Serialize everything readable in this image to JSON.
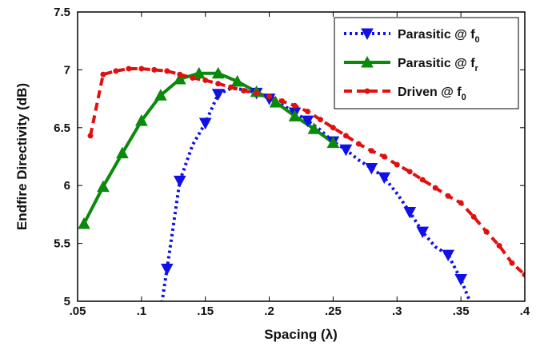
{
  "chart_data": {
    "type": "line",
    "title": "",
    "xlabel": "Spacing (λ)",
    "ylabel": "Endfire Directivity (dB)",
    "xlim": [
      0.05,
      0.4
    ],
    "ylim": [
      5,
      7.5
    ],
    "x_ticks": [
      ".05",
      ".1",
      ".15",
      ".2",
      ".25",
      ".3",
      ".35",
      ".4"
    ],
    "y_ticks": [
      "5",
      "5.5",
      "6",
      "6.5",
      "7",
      "7.5"
    ],
    "grid": false,
    "legend_position": "top-right",
    "series": [
      {
        "name_main": "Parasitic @ f",
        "name_sub": "0",
        "color": "#1010e8",
        "line_style": "dotted",
        "marker": "triangle-down",
        "x": [
          0.112,
          0.12,
          0.13,
          0.14,
          0.15,
          0.16,
          0.17,
          0.18,
          0.19,
          0.2,
          0.21,
          0.22,
          0.23,
          0.24,
          0.25,
          0.26,
          0.27,
          0.28,
          0.29,
          0.3,
          0.31,
          0.32,
          0.33,
          0.34,
          0.35,
          0.357
        ],
        "y": [
          4.7,
          5.28,
          6.04,
          6.35,
          6.54,
          6.79,
          6.84,
          6.83,
          6.8,
          6.75,
          6.7,
          6.63,
          6.56,
          6.48,
          6.38,
          6.31,
          6.22,
          6.15,
          6.07,
          5.93,
          5.77,
          5.6,
          5.47,
          5.4,
          5.19,
          5.0
        ],
        "marked": [
          false,
          true,
          true,
          false,
          true,
          true,
          false,
          false,
          true,
          true,
          false,
          true,
          true,
          false,
          true,
          true,
          false,
          true,
          true,
          false,
          true,
          true,
          false,
          true,
          true,
          false
        ]
      },
      {
        "name_main": "Parasitic @ f",
        "name_sub": "r",
        "color": "#0a8a0a",
        "line_style": "solid",
        "marker": "triangle-up",
        "x": [
          0.055,
          0.07,
          0.085,
          0.1,
          0.115,
          0.13,
          0.145,
          0.16,
          0.175,
          0.19,
          0.205,
          0.22,
          0.235,
          0.25
        ],
        "y": [
          5.67,
          5.99,
          6.28,
          6.56,
          6.78,
          6.92,
          6.97,
          6.97,
          6.9,
          6.81,
          6.72,
          6.6,
          6.49,
          6.37
        ]
      },
      {
        "name_main": "Driven @ f",
        "name_sub": "0",
        "color": "#e01010",
        "line_style": "dashed",
        "marker": "dot",
        "x": [
          0.06,
          0.07,
          0.08,
          0.09,
          0.1,
          0.11,
          0.12,
          0.13,
          0.14,
          0.15,
          0.16,
          0.17,
          0.18,
          0.19,
          0.2,
          0.21,
          0.22,
          0.23,
          0.24,
          0.25,
          0.26,
          0.27,
          0.28,
          0.29,
          0.3,
          0.31,
          0.32,
          0.33,
          0.34,
          0.35,
          0.36,
          0.37,
          0.38,
          0.39,
          0.4
        ],
        "y": [
          6.43,
          6.96,
          6.99,
          7.01,
          7.01,
          7.0,
          6.99,
          6.96,
          6.93,
          6.91,
          6.88,
          6.85,
          6.82,
          6.8,
          6.77,
          6.73,
          6.69,
          6.64,
          6.57,
          6.5,
          6.43,
          6.36,
          6.3,
          6.25,
          6.18,
          6.12,
          6.05,
          5.98,
          5.91,
          5.85,
          5.73,
          5.6,
          5.48,
          5.33,
          5.23
        ]
      }
    ]
  }
}
